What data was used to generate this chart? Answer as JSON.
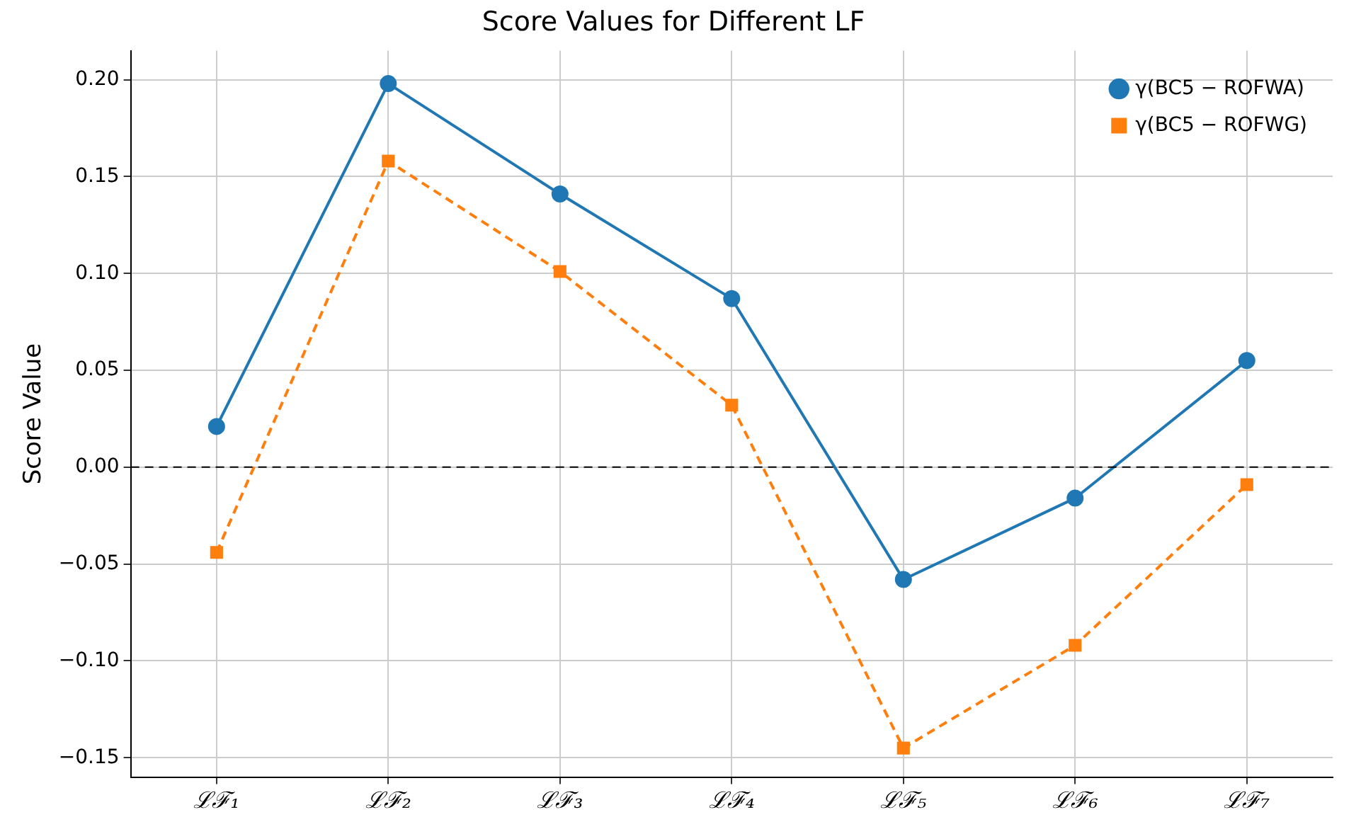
{
  "chart_data": {
    "type": "line",
    "title": "Score Values for Different LF",
    "ylabel": "Score Value",
    "categories": [
      "ℒℱ₁",
      "ℒℱ₂",
      "ℒℱ₃",
      "ℒℱ₄",
      "ℒℱ₅",
      "ℒℱ₆",
      "ℒℱ₇"
    ],
    "series": [
      {
        "name": "γ(BC5 − ROFWA)",
        "color": "#1f77b4",
        "marker": "circle",
        "line_style": "solid",
        "values": [
          0.021,
          0.198,
          0.141,
          0.087,
          -0.058,
          -0.016,
          0.055
        ]
      },
      {
        "name": "γ(BC5 − ROFWG)",
        "color": "#ff7f0e",
        "marker": "square",
        "line_style": "dashed",
        "values": [
          -0.044,
          0.158,
          0.101,
          0.032,
          -0.145,
          -0.092,
          -0.009
        ]
      }
    ],
    "ylim": [
      -0.16,
      0.215
    ],
    "yticks": [
      {
        "value": -0.15,
        "label": "−0.15"
      },
      {
        "value": -0.1,
        "label": "−0.10"
      },
      {
        "value": -0.05,
        "label": "−0.05"
      },
      {
        "value": 0,
        "label": "0.00"
      },
      {
        "value": 0.05,
        "label": "0.05"
      },
      {
        "value": 0.1,
        "label": "0.10"
      },
      {
        "value": 0.15,
        "label": "0.15"
      },
      {
        "value": 0.2,
        "label": "0.20"
      }
    ],
    "ref_lines": [
      {
        "axis": "y",
        "value": 0,
        "color": "#000000",
        "line_style": "dashed"
      }
    ],
    "grid": true,
    "legend": "top right"
  }
}
